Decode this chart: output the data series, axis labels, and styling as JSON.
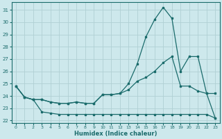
{
  "bg_color": "#cde8ec",
  "grid_color": "#b0d0d4",
  "line_color": "#1a6b6b",
  "xlabel": "Humidex (Indice chaleur)",
  "xlim": [
    -0.5,
    23.5
  ],
  "ylim": [
    21.8,
    31.6
  ],
  "yticks": [
    22,
    23,
    24,
    25,
    26,
    27,
    28,
    29,
    30,
    31
  ],
  "xticks": [
    0,
    1,
    2,
    3,
    4,
    5,
    6,
    7,
    8,
    9,
    10,
    11,
    12,
    13,
    14,
    15,
    16,
    17,
    18,
    19,
    20,
    21,
    22,
    23
  ],
  "line1_x": [
    0,
    1,
    2,
    3,
    4,
    5,
    6,
    7,
    8,
    9,
    10,
    11,
    12,
    13,
    14,
    15,
    16,
    17,
    18,
    19,
    20,
    21,
    22,
    23
  ],
  "line1_y": [
    24.8,
    23.9,
    23.7,
    22.7,
    22.6,
    22.5,
    22.5,
    22.5,
    22.5,
    22.5,
    22.5,
    22.5,
    22.5,
    22.5,
    22.5,
    22.5,
    22.5,
    22.5,
    22.5,
    22.5,
    22.5,
    22.5,
    22.5,
    22.2
  ],
  "line2_x": [
    0,
    1,
    2,
    3,
    4,
    5,
    6,
    7,
    8,
    9,
    10,
    11,
    12,
    13,
    14,
    15,
    16,
    17,
    18,
    19,
    20,
    21,
    22,
    23
  ],
  "line2_y": [
    24.8,
    23.9,
    23.7,
    23.7,
    23.5,
    23.4,
    23.4,
    23.5,
    23.4,
    23.4,
    24.1,
    24.1,
    24.2,
    25.0,
    26.6,
    28.8,
    30.2,
    31.2,
    30.3,
    26.0,
    27.2,
    27.2,
    24.2,
    24.2
  ],
  "line3_x": [
    0,
    1,
    2,
    3,
    4,
    5,
    6,
    7,
    8,
    9,
    10,
    11,
    12,
    13,
    14,
    15,
    16,
    17,
    18,
    19,
    20,
    21,
    22,
    23
  ],
  "line3_y": [
    24.8,
    23.9,
    23.7,
    23.7,
    23.5,
    23.4,
    23.4,
    23.5,
    23.4,
    23.4,
    24.1,
    24.1,
    24.2,
    24.5,
    25.2,
    25.5,
    26.0,
    26.7,
    27.2,
    24.8,
    24.8,
    24.4,
    24.2,
    22.2
  ]
}
